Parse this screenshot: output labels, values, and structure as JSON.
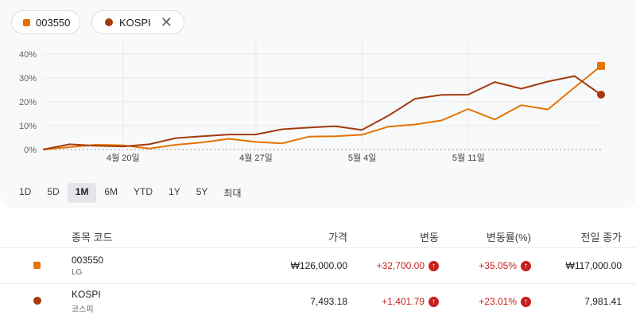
{
  "chips": [
    {
      "label": "003550",
      "color": "#e37400"
    },
    {
      "label": "KOSPI",
      "color": "#a33b0f"
    }
  ],
  "chart_data": {
    "type": "line",
    "y_ticks": [
      "40%",
      "30%",
      "20%",
      "10%",
      "0%"
    ],
    "x_tick_labels": [
      "4월 20일",
      "4월 27일",
      "5월 4일",
      "5월 11일"
    ],
    "ylim": [
      0,
      45
    ],
    "series": [
      {
        "name": "003550",
        "color": "#e37400",
        "values": [
          0,
          1.0,
          2.0,
          1.8,
          0.4,
          2.0,
          3.0,
          4.5,
          3.2,
          2.6,
          5.4,
          5.6,
          6.2,
          9.6,
          10.5,
          12.2,
          17.0,
          12.6,
          18.6,
          16.8,
          26.0,
          35.05
        ]
      },
      {
        "name": "KOSPI",
        "color": "#a33b0f",
        "values": [
          0,
          2.2,
          1.6,
          1.3,
          2.2,
          4.8,
          5.6,
          6.3,
          6.3,
          8.5,
          9.2,
          9.8,
          8.2,
          14.2,
          21.3,
          22.9,
          23.0,
          28.3,
          25.5,
          28.5,
          30.8,
          23.01
        ]
      }
    ]
  },
  "ranges": [
    "1D",
    "5D",
    "1M",
    "6M",
    "YTD",
    "1Y",
    "5Y",
    "최대"
  ],
  "active_range": "1M",
  "table": {
    "headers": [
      "종목 코드",
      "가격",
      "변동",
      "변동률(%)",
      "전일 종가"
    ],
    "rows": [
      {
        "symbol": "003550",
        "name": "LG",
        "color": "#e37400",
        "shape": "square",
        "price": "₩126,000.00",
        "change": "+32,700.00",
        "pct": "+35.05%",
        "prev": "₩117,000.00"
      },
      {
        "symbol": "KOSPI",
        "name": "코스피",
        "color": "#a33b0f",
        "shape": "circle",
        "price": "7,493.18",
        "change": "+1,401.79",
        "pct": "+23.01%",
        "prev": "7,981.41"
      }
    ]
  }
}
